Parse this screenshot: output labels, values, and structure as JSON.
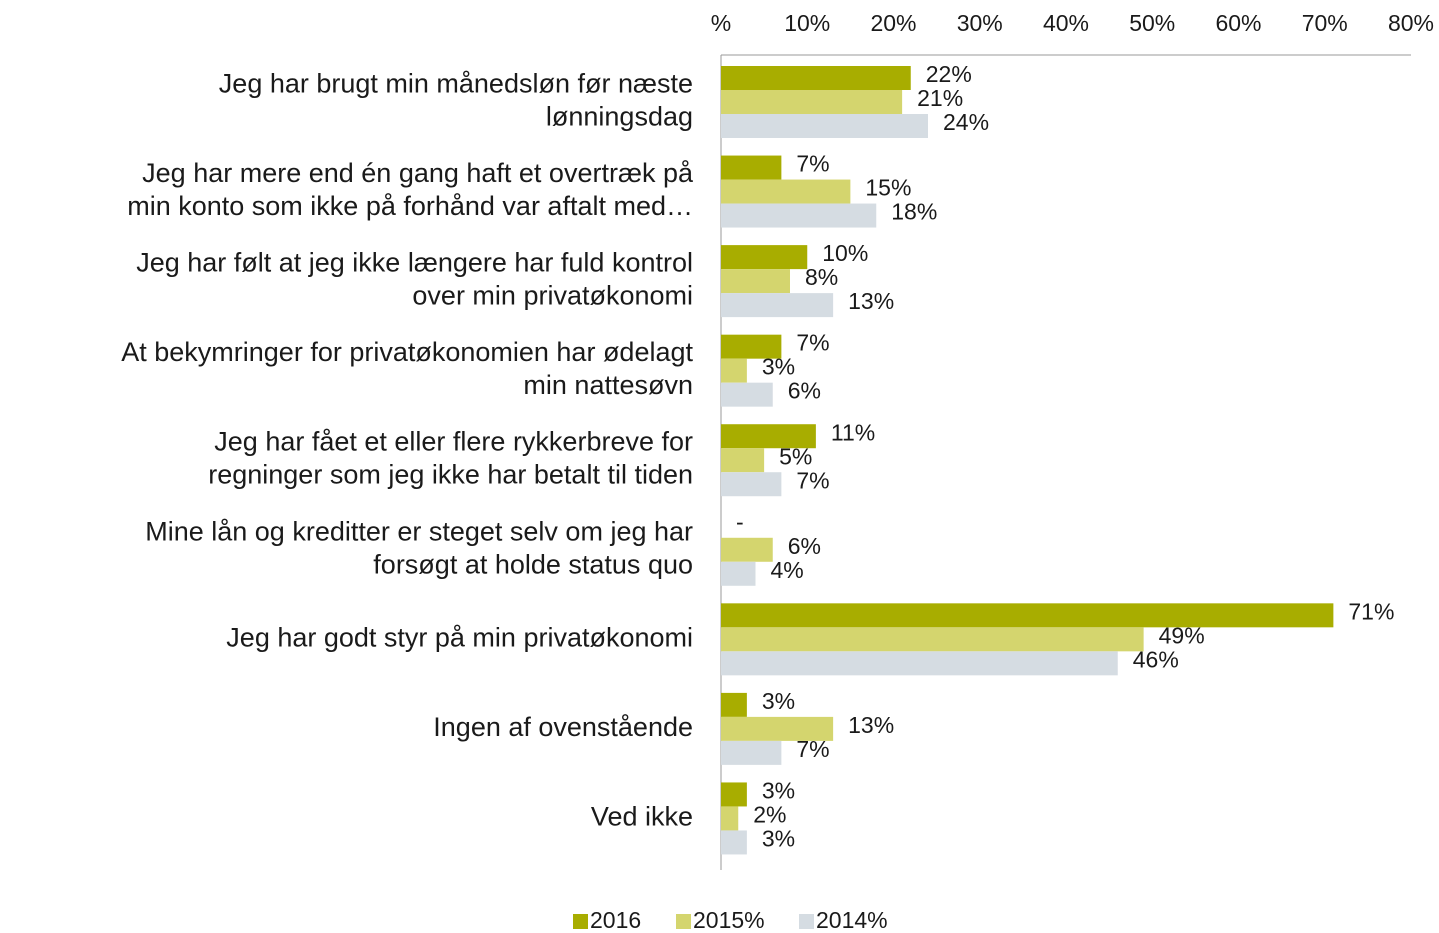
{
  "chart_data": {
    "type": "hbar",
    "categories": [
      "Jeg har brugt min månedsløn før næste\nlønningsdag",
      "Jeg har mere end én gang haft et overtræk på\nmin konto som ikke på forhånd var aftalt med…",
      "Jeg har følt at jeg ikke længere har fuld kontrol\nover min privatøkonomi",
      "At bekymringer for privatøkonomien har ødelagt\nmin nattesøvn",
      "Jeg har fået et eller flere rykkerbreve for\nregninger som jeg ikke har betalt til tiden",
      "Mine lån og kreditter er steget selv om jeg har\nforsøgt at holde status quo",
      "Jeg har godt styr på min privatøkonomi",
      "Ingen af ovenstående",
      "Ved ikke"
    ],
    "series": [
      {
        "name": "2016",
        "color": "#a8ad00",
        "values": [
          22,
          7,
          10,
          7,
          11,
          null,
          71,
          3,
          3
        ],
        "value_labels": [
          "22%",
          "7%",
          "10%",
          "7%",
          "11%",
          "-",
          "71%",
          "3%",
          "3%"
        ]
      },
      {
        "name": "2015%",
        "color": "#d4d56e",
        "values": [
          21,
          15,
          8,
          3,
          5,
          6,
          49,
          13,
          2
        ],
        "value_labels": [
          "21%",
          "15%",
          "8%",
          "3%",
          "5%",
          "6%",
          "49%",
          "13%",
          "2%"
        ]
      },
      {
        "name": "2014%",
        "color": "#d5dce2",
        "values": [
          24,
          18,
          13,
          6,
          7,
          4,
          46,
          7,
          3
        ],
        "value_labels": [
          "24%",
          "18%",
          "13%",
          "6%",
          "7%",
          "4%",
          "46%",
          "7%",
          "3%"
        ]
      }
    ],
    "xlim": [
      0,
      80
    ],
    "xticks": [
      {
        "value": 0,
        "label": "%"
      },
      {
        "value": 10,
        "label": "10%"
      },
      {
        "value": 20,
        "label": "20%"
      },
      {
        "value": 30,
        "label": "30%"
      },
      {
        "value": 40,
        "label": "40%"
      },
      {
        "value": 50,
        "label": "50%"
      },
      {
        "value": 60,
        "label": "60%"
      },
      {
        "value": 70,
        "label": "70%"
      },
      {
        "value": 80,
        "label": "80%"
      }
    ],
    "legend": "bottom"
  }
}
